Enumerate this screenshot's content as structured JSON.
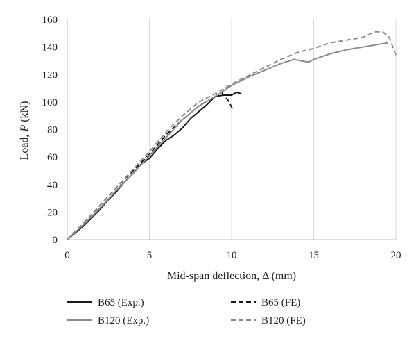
{
  "chart_data": {
    "type": "line",
    "xlabel": "Mid-span deflection, Δ (mm)",
    "ylabel_prefix": "Load, ",
    "ylabel_var": "P",
    "ylabel_suffix": " (kN)",
    "xlim": [
      0,
      20
    ],
    "ylim": [
      0,
      160
    ],
    "x_ticks": [
      "0",
      "5",
      "10",
      "15",
      "20"
    ],
    "y_ticks": [
      "0",
      "20",
      "40",
      "60",
      "80",
      "100",
      "120",
      "140",
      "160"
    ],
    "grid": "vertical",
    "legend_position": "bottom",
    "series": [
      {
        "name": "B65 (Exp.)",
        "color": "#1a1a1a",
        "dash": "solid",
        "x": [
          0,
          0.5,
          1,
          1.5,
          2,
          2.5,
          3,
          3.5,
          4,
          4.5,
          5,
          5.5,
          6,
          6.5,
          7,
          7.5,
          8,
          8.5,
          9,
          9.5,
          10,
          10.3,
          10.6
        ],
        "y": [
          0,
          5,
          10,
          16,
          22,
          29,
          35,
          42,
          48,
          55,
          59,
          66,
          72,
          76,
          81,
          88,
          93,
          98,
          104,
          105,
          105,
          107,
          106
        ]
      },
      {
        "name": "B65 (FE)",
        "color": "#1a1a1a",
        "dash": "dashed",
        "x": [
          0,
          1,
          2,
          3,
          4,
          5,
          6,
          7,
          8,
          9,
          9.4,
          9.8,
          10.1
        ],
        "y": [
          0,
          12,
          25,
          38,
          50,
          62,
          76,
          87,
          97,
          104,
          107,
          101,
          94
        ]
      },
      {
        "name": "B120 (Exp.)",
        "color": "#8c8c8c",
        "dash": "solid",
        "x": [
          0,
          1,
          2,
          3,
          4,
          5,
          6,
          7,
          8,
          9,
          10,
          11,
          12,
          13,
          13.8,
          14.2,
          14.7,
          15,
          16,
          17,
          18,
          19,
          19.5
        ],
        "y": [
          0,
          11,
          23,
          36,
          48,
          61,
          74,
          87,
          97,
          104,
          112,
          118,
          123,
          128,
          131,
          130,
          129,
          131,
          135,
          138,
          140,
          142,
          143
        ]
      },
      {
        "name": "B120 (FE)",
        "color": "#8c8c8c",
        "dash": "dashed",
        "x": [
          0,
          1,
          2,
          3,
          4,
          5,
          6,
          7,
          8,
          9,
          10,
          11,
          12,
          13,
          14,
          15,
          16,
          17,
          18,
          18.7,
          19.2,
          19.6,
          20
        ],
        "y": [
          0,
          12,
          25,
          38,
          51,
          64,
          78,
          90,
          100,
          106,
          113,
          119,
          125,
          131,
          136,
          139,
          143,
          145,
          147,
          151,
          151,
          147,
          134
        ]
      }
    ]
  }
}
